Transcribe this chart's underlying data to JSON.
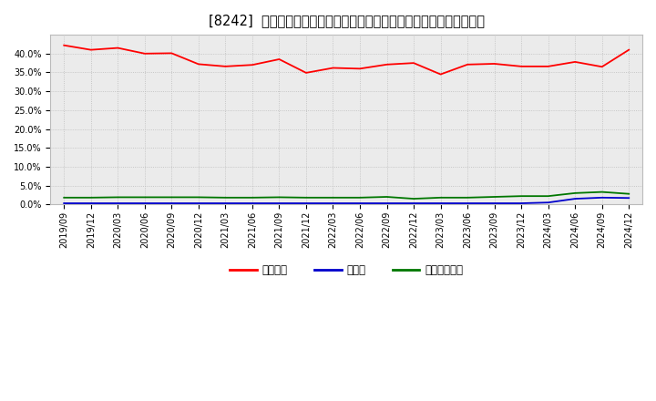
{
  "title": "[8242]  自己資本、のれん、繰延税金資産の総資産に対する比率の推移",
  "x_labels": [
    "2019/09",
    "2019/12",
    "2020/03",
    "2020/06",
    "2020/09",
    "2020/12",
    "2021/03",
    "2021/06",
    "2021/09",
    "2021/12",
    "2022/03",
    "2022/06",
    "2022/09",
    "2022/12",
    "2023/03",
    "2023/06",
    "2023/09",
    "2023/12",
    "2024/03",
    "2024/06",
    "2024/09",
    "2024/12"
  ],
  "equity": [
    42.2,
    41.0,
    41.5,
    40.0,
    40.1,
    37.2,
    36.6,
    37.0,
    38.5,
    34.9,
    36.2,
    36.0,
    37.1,
    37.5,
    34.5,
    37.1,
    37.3,
    36.6,
    36.6,
    37.8,
    36.5,
    41.0
  ],
  "goodwill": [
    0.3,
    0.3,
    0.3,
    0.3,
    0.3,
    0.3,
    0.3,
    0.3,
    0.3,
    0.3,
    0.3,
    0.3,
    0.3,
    0.3,
    0.3,
    0.3,
    0.3,
    0.3,
    0.5,
    1.5,
    1.8,
    1.7
  ],
  "deferred_tax": [
    1.8,
    1.8,
    1.9,
    1.9,
    1.9,
    1.9,
    1.8,
    1.8,
    1.9,
    1.8,
    1.8,
    1.8,
    2.0,
    1.5,
    1.8,
    1.8,
    2.0,
    2.2,
    2.2,
    3.0,
    3.3,
    2.8
  ],
  "equity_color": "#ff0000",
  "goodwill_color": "#0000cc",
  "deferred_tax_color": "#007700",
  "legend_labels": [
    "自己資本",
    "のれん",
    "繰延税金資産"
  ],
  "ylim": [
    0,
    45
  ],
  "yticks": [
    0.0,
    5.0,
    10.0,
    15.0,
    20.0,
    25.0,
    30.0,
    35.0,
    40.0
  ],
  "bg_color": "#ffffff",
  "plot_bg_color": "#ebebeb",
  "grid_color": "#bbbbbb",
  "title_fontsize": 10.5,
  "tick_fontsize": 7,
  "legend_fontsize": 8.5
}
